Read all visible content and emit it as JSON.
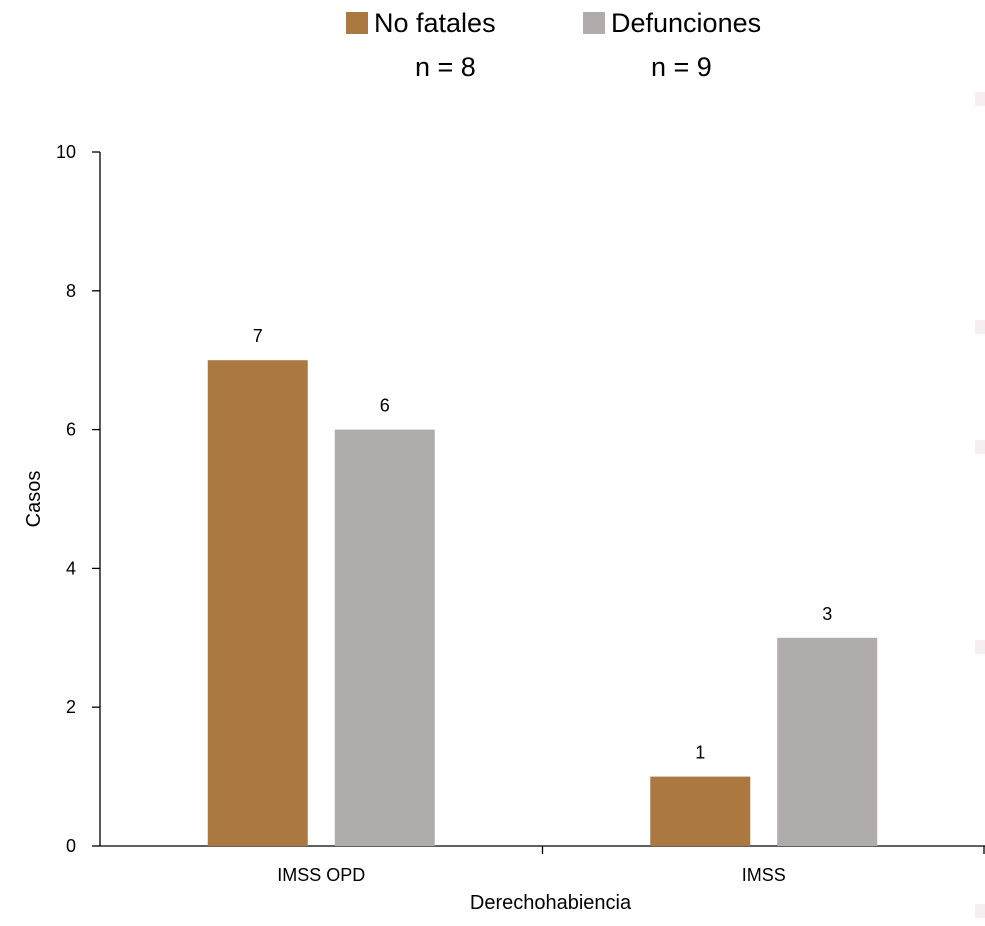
{
  "chart_data": {
    "type": "bar",
    "categories": [
      "IMSS OPD",
      "IMSS"
    ],
    "series": [
      {
        "name": "No fatales",
        "n_label": "n = 8",
        "color": "#AC7842",
        "values": [
          7,
          1
        ]
      },
      {
        "name": "Defunciones",
        "n_label": "n = 9",
        "color": "#AFACAB",
        "values": [
          6,
          3
        ]
      }
    ],
    "xlabel": "Derechohabiencia",
    "ylabel": "Casos",
    "ylim": [
      0,
      10
    ],
    "yticks": [
      0,
      2,
      4,
      6,
      8,
      10
    ],
    "legend_position": "top",
    "grid": false,
    "data_labels": true
  }
}
